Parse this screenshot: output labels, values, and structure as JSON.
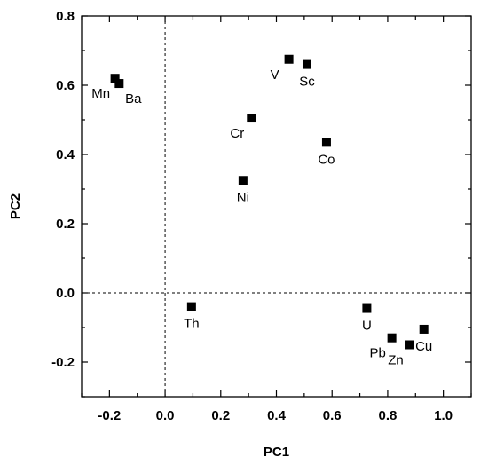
{
  "chart_data": {
    "type": "scatter",
    "title": "",
    "xlabel": "PC1",
    "ylabel": "PC2",
    "xlim": [
      -0.3,
      1.1
    ],
    "ylim": [
      -0.3,
      0.8
    ],
    "xticks": [
      -0.2,
      0.0,
      0.2,
      0.4,
      0.6,
      0.8,
      1.0
    ],
    "xtick_labels": [
      "-0.2",
      "0.0",
      "0.2",
      "0.4",
      "0.6",
      "0.8",
      "1.0"
    ],
    "yticks": [
      -0.2,
      0.0,
      0.2,
      0.4,
      0.6,
      0.8
    ],
    "ytick_labels": [
      "-0.2",
      "0.0",
      "0.2",
      "0.4",
      "0.6",
      "0.8"
    ],
    "reference_lines": {
      "x": 0.0,
      "y": 0.0,
      "style": "dashed"
    },
    "grid": false,
    "legend": "none",
    "marker": "square",
    "marker_color": "#000000",
    "points": [
      {
        "label": "Mn",
        "x": -0.18,
        "y": 0.62,
        "label_pos": "below-left"
      },
      {
        "label": "Ba",
        "x": -0.165,
        "y": 0.605,
        "label_pos": "below-right"
      },
      {
        "label": "V",
        "x": 0.445,
        "y": 0.675,
        "label_pos": "below-left"
      },
      {
        "label": "Sc",
        "x": 0.51,
        "y": 0.66,
        "label_pos": "below"
      },
      {
        "label": "Cr",
        "x": 0.31,
        "y": 0.505,
        "label_pos": "below-left"
      },
      {
        "label": "Co",
        "x": 0.58,
        "y": 0.435,
        "label_pos": "below"
      },
      {
        "label": "Ni",
        "x": 0.28,
        "y": 0.325,
        "label_pos": "below"
      },
      {
        "label": "Th",
        "x": 0.095,
        "y": -0.04,
        "label_pos": "below"
      },
      {
        "label": "U",
        "x": 0.725,
        "y": -0.045,
        "label_pos": "below"
      },
      {
        "label": "Pb",
        "x": 0.815,
        "y": -0.13,
        "label_pos": "below-left"
      },
      {
        "label": "Zn",
        "x": 0.88,
        "y": -0.15,
        "label_pos": "below-left"
      },
      {
        "label": "Cu",
        "x": 0.93,
        "y": -0.105,
        "label_pos": "below"
      }
    ]
  }
}
